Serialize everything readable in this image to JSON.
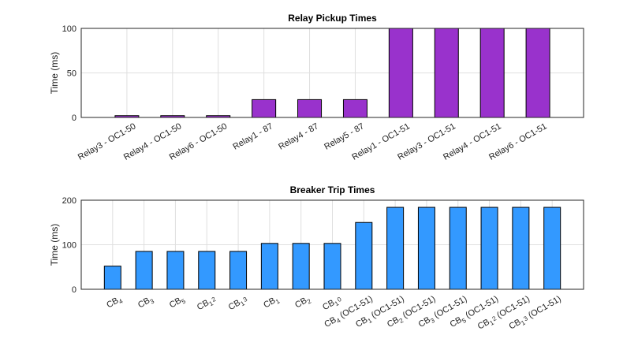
{
  "chart_data": [
    {
      "type": "bar",
      "title": "Relay Pickup Times",
      "ylabel": "Time (ms)",
      "ylim": [
        0,
        100
      ],
      "yticks": [
        0,
        50,
        100
      ],
      "grid": true,
      "color": "#9932CC",
      "categories": [
        "Relay3 - OC1-50",
        "Relay4 - OC1-50",
        "Relay6 - OC1-50",
        "Relay1 - 87",
        "Relay4 - 87",
        "Relay5 - 87",
        "Relay1 - OC1-51",
        "Relay3 - OC1-51",
        "Relay4 - OC1-51",
        "Relay6 - OC1-51"
      ],
      "values": [
        2,
        2,
        2,
        20,
        20,
        20,
        100,
        100,
        100,
        100
      ]
    },
    {
      "type": "bar",
      "title": "Breaker Trip Times",
      "ylabel": "Time (ms)",
      "ylim": [
        0,
        200
      ],
      "yticks": [
        0,
        100,
        200
      ],
      "grid": true,
      "color": "#3399FF",
      "categories": [
        "CB_4",
        "CB_3",
        "CB_5",
        "CB_12",
        "CB_13",
        "CB_1",
        "CB_2",
        "CB_10",
        "CB_4 (OC1-51)",
        "CB_1 (OC1-51)",
        "CB_2 (OC1-51)",
        "CB_3 (OC1-51)",
        "CB_5 (OC1-51)",
        "CB_12 (OC1-51)",
        "CB_13 (OC1-51)"
      ],
      "values": [
        52,
        85,
        85,
        85,
        85,
        103,
        103,
        103,
        150,
        184,
        184,
        184,
        184,
        184,
        184
      ]
    }
  ]
}
